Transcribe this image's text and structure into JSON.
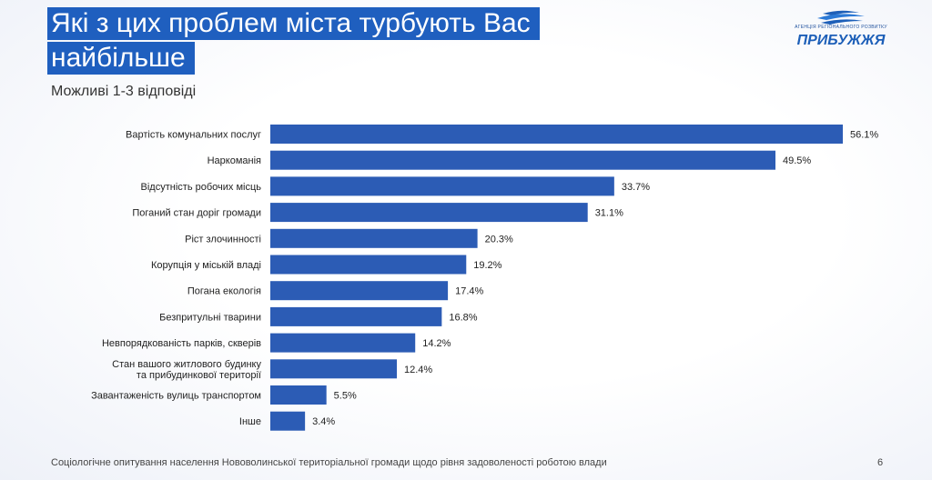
{
  "title_line_1": "Які з цих проблем міста турбують Вас",
  "title_line_2": "найбільше",
  "subtitle": "Можливі 1-3 відповіді",
  "logo": {
    "caption": "АГЕНЦІЯ РЕГІОНАЛЬНОГО РОЗВИТКУ",
    "brand": "ПРИБУЖЖЯ"
  },
  "footer": "Соціологічне опитування населення Нововолинської територіальної громади щодо рівня задоволеності роботою влади",
  "page_number": "6",
  "colors": {
    "bar": "#2c5cb5",
    "title_bg": "#1f5fbf"
  },
  "chart_data": {
    "type": "bar",
    "orientation": "horizontal",
    "categories": [
      [
        "Вартість комунальних послуг"
      ],
      [
        "Наркоманія"
      ],
      [
        "Відсутність робочих місць"
      ],
      [
        "Поганий стан доріг громади"
      ],
      [
        "Ріст злочинності"
      ],
      [
        "Корупція у міській владі"
      ],
      [
        "Погана екологія"
      ],
      [
        "Безпритульні тварини"
      ],
      [
        "Невпорядкованість парків, скверів"
      ],
      [
        "Стан вашого житлового будинку",
        "та прибудинкової території"
      ],
      [
        "Завантаженість вулиць транспортом"
      ],
      [
        "Інше"
      ]
    ],
    "values": [
      56.1,
      49.5,
      33.7,
      31.1,
      20.3,
      19.2,
      17.4,
      16.8,
      14.2,
      12.4,
      5.5,
      3.4
    ],
    "value_labels": [
      "56.1%",
      "49.5%",
      "33.7%",
      "31.1%",
      "20.3%",
      "19.2%",
      "17.4%",
      "16.8%",
      "14.2%",
      "12.4%",
      "5.5%",
      "3.4%"
    ],
    "xlim": [
      0,
      56.1
    ],
    "grid": false,
    "legend": "none"
  }
}
